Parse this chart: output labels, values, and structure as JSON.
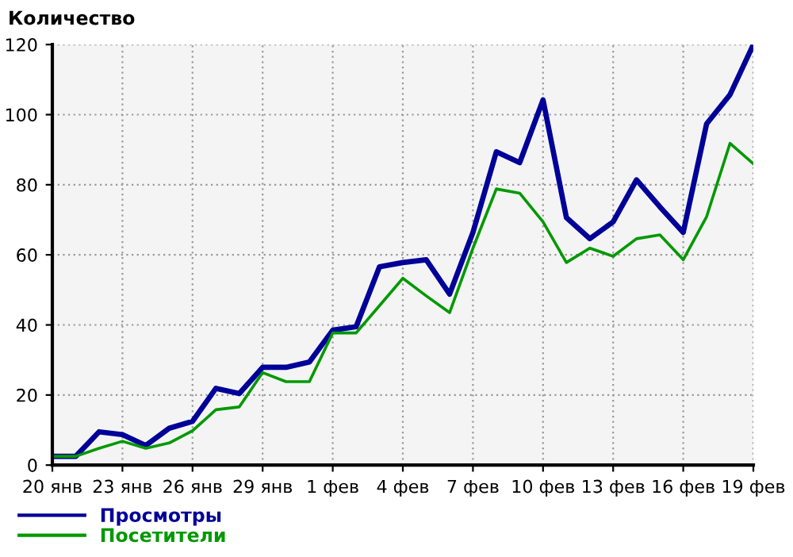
{
  "chart_data": {
    "type": "line",
    "title": "Количество",
    "categories": [
      "20 янв",
      null,
      null,
      "23 янв",
      null,
      null,
      "26 янв",
      null,
      null,
      "29 янв",
      null,
      null,
      "1 фев",
      null,
      null,
      "4 фев",
      null,
      null,
      "7 фев",
      null,
      null,
      "10 фев",
      null,
      null,
      "13 фев",
      null,
      null,
      "16 фев",
      null,
      null,
      "19 фев"
    ],
    "series": [
      {
        "name": "Просмотры",
        "color": "#000099",
        "values": [
          2.5,
          2.5,
          9.5,
          8.7,
          5.6,
          10.5,
          12.5,
          21.9,
          20.4,
          27.9,
          27.9,
          29.4,
          38.5,
          39.5,
          56.6,
          57.8,
          58.6,
          48.8,
          66.4,
          89.4,
          86.3,
          104.2,
          70.6,
          64.6,
          69.4,
          81.4,
          73.7,
          66.4,
          97.4,
          105.7,
          120
        ]
      },
      {
        "name": "Посетители",
        "color": "#009900",
        "values": [
          2.5,
          2.5,
          4.8,
          6.8,
          4.8,
          6.3,
          9.8,
          15.8,
          16.6,
          26.4,
          23.8,
          23.8,
          37.7,
          37.7,
          45.5,
          53.3,
          48.3,
          43.5,
          61.9,
          78.8,
          77.6,
          69.4,
          57.8,
          61.9,
          59.6,
          64.6,
          65.7,
          58.6,
          70.9,
          91.8,
          86.0
        ]
      }
    ],
    "ylim": [
      0,
      120
    ],
    "yticks": [
      0,
      20,
      40,
      60,
      80,
      100,
      120
    ],
    "grid": true,
    "legend": "bottom left",
    "marker": "none",
    "line_style": "solid"
  }
}
